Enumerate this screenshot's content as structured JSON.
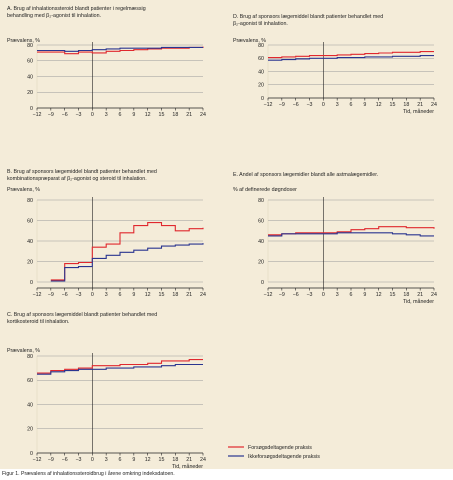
{
  "colors": {
    "red": "#e0282e",
    "blue": "#2a3590",
    "axis": "#222222",
    "grid": "#9a9a9a"
  },
  "legend": {
    "red_label": "Forsøgsdeltagende praksis",
    "blue_label": "Ikkeforsøgsdeltagende praksis"
  },
  "caption": "Figur 1.  Prævalens af inhalationssteroidbrug i årene omkring indeksdatoen.",
  "chart_data": [
    {
      "id": "A",
      "type": "line",
      "title_lines": [
        "A. Brug af inhalationssteroid blandt patienter i regelmæssig",
        "behandling med β₂-agonist til inhalation."
      ],
      "ylabel": "Prævalens, %",
      "xlabel": "",
      "x": [
        -12,
        -9,
        -6,
        -3,
        0,
        3,
        6,
        9,
        12,
        15,
        18,
        21,
        24
      ],
      "x_ticks": [
        -12,
        -9,
        -6,
        -3,
        0,
        3,
        6,
        9,
        12,
        15,
        18,
        21,
        24
      ],
      "ylim": [
        0,
        80
      ],
      "y_ticks": [
        0,
        20,
        40,
        60,
        80
      ],
      "series": [
        {
          "name": "Forsøgsdeltagende praksis",
          "color": "red",
          "values": [
            71,
            71,
            69,
            71,
            70,
            72,
            73,
            74,
            75,
            76,
            76,
            77,
            78
          ]
        },
        {
          "name": "Ikkeforsøgsdeltagende praksis",
          "color": "blue",
          "values": [
            73,
            73,
            72,
            73,
            74,
            75,
            76,
            76,
            76,
            77,
            77,
            77,
            null
          ]
        }
      ]
    },
    {
      "id": "B",
      "type": "line",
      "title_lines": [
        "B. Brug af sponsors lægemiddel blandt patienter behandlet med",
        "kombinationspræparat af β₂-agonist og steroid til inhalation."
      ],
      "ylabel": "Prævalens, %",
      "xlabel": "",
      "x": [
        -12,
        -9,
        -6,
        -3,
        0,
        3,
        6,
        9,
        12,
        15,
        18,
        21,
        24
      ],
      "x_ticks": [
        -12,
        -9,
        -6,
        -3,
        0,
        3,
        6,
        9,
        12,
        15,
        18,
        21,
        24
      ],
      "ylim": [
        0,
        80
      ],
      "y_ticks": [
        0,
        20,
        40,
        60,
        80
      ],
      "series": [
        {
          "name": "Forsøgsdeltagende praksis",
          "color": "red",
          "values": [
            null,
            2,
            18,
            19,
            34,
            37,
            48,
            55,
            58,
            55,
            50,
            52,
            53
          ]
        },
        {
          "name": "Ikkeforsøgsdeltagende praksis",
          "color": "blue",
          "values": [
            null,
            1,
            14,
            15,
            23,
            26,
            29,
            31,
            33,
            35,
            36,
            37,
            38
          ]
        }
      ]
    },
    {
      "id": "C",
      "type": "line",
      "title_lines": [
        "C. Brug af sponsors lægemiddel blandt patienter behandlet med",
        "kortikosteroid til inhalation."
      ],
      "ylabel": "Prævalens, %",
      "xlabel": "Tid, måneder",
      "x": [
        -12,
        -9,
        -6,
        -3,
        0,
        3,
        6,
        9,
        12,
        15,
        18,
        21,
        24
      ],
      "x_ticks": [
        -12,
        -9,
        -6,
        -3,
        0,
        3,
        6,
        9,
        12,
        15,
        18,
        21,
        24
      ],
      "ylim": [
        0,
        80
      ],
      "y_ticks": [
        0,
        20,
        40,
        60,
        80
      ],
      "series": [
        {
          "name": "Forsøgsdeltagende praksis",
          "color": "red",
          "values": [
            66,
            68,
            69,
            70,
            72,
            72,
            73,
            73,
            74,
            76,
            76,
            77,
            77
          ]
        },
        {
          "name": "Ikkeforsøgsdeltagende praksis",
          "color": "blue",
          "values": [
            65,
            67,
            68,
            69,
            69,
            70,
            70,
            71,
            71,
            72,
            73,
            73,
            73
          ]
        }
      ]
    },
    {
      "id": "D",
      "type": "line",
      "title_lines": [
        "D. Brug af sponsors lægemiddel blandt patienter behandlet med",
        "β₂-agonist til inhalation."
      ],
      "ylabel": "Prævalens, %",
      "xlabel": "Tid, måneder",
      "x": [
        -12,
        -9,
        -6,
        -3,
        0,
        3,
        6,
        9,
        12,
        15,
        18,
        21,
        24
      ],
      "x_ticks": [
        -12,
        -9,
        -6,
        -3,
        0,
        3,
        6,
        9,
        12,
        15,
        18,
        21,
        24
      ],
      "ylim": [
        0,
        80
      ],
      "y_ticks": [
        0,
        20,
        40,
        60,
        80
      ],
      "series": [
        {
          "name": "Forsøgsdeltagende praksis",
          "color": "red",
          "values": [
            61,
            62,
            63,
            64,
            64,
            65,
            66,
            67,
            68,
            69,
            69,
            70,
            70
          ]
        },
        {
          "name": "Ikkeforsøgsdeltagende praksis",
          "color": "blue",
          "values": [
            57,
            58,
            59,
            60,
            60,
            61,
            61,
            62,
            62,
            63,
            63,
            64,
            64
          ]
        }
      ]
    },
    {
      "id": "E",
      "type": "line",
      "title_lines": [
        "E. Andel af sponsors lægemidler blandt alle astmalægemidler."
      ],
      "ylabel": "% af definerede døgndoser",
      "xlabel": "Tid, måneder",
      "x": [
        -12,
        -9,
        -6,
        -3,
        0,
        3,
        6,
        9,
        12,
        15,
        18,
        21,
        24
      ],
      "x_ticks": [
        -12,
        -9,
        -6,
        -3,
        0,
        3,
        6,
        9,
        12,
        15,
        18,
        21,
        24
      ],
      "ylim": [
        0,
        80
      ],
      "y_ticks": [
        0,
        20,
        40,
        60,
        80
      ],
      "series": [
        {
          "name": "Forsøgsdeltagende praksis",
          "color": "red",
          "values": [
            46,
            47,
            48,
            48,
            48,
            49,
            51,
            52,
            54,
            54,
            53,
            53,
            52
          ]
        },
        {
          "name": "Ikkeforsøgsdeltagende praksis",
          "color": "blue",
          "values": [
            45,
            47,
            47,
            47,
            47,
            48,
            48,
            48,
            48,
            47,
            46,
            45,
            45
          ]
        }
      ]
    }
  ]
}
